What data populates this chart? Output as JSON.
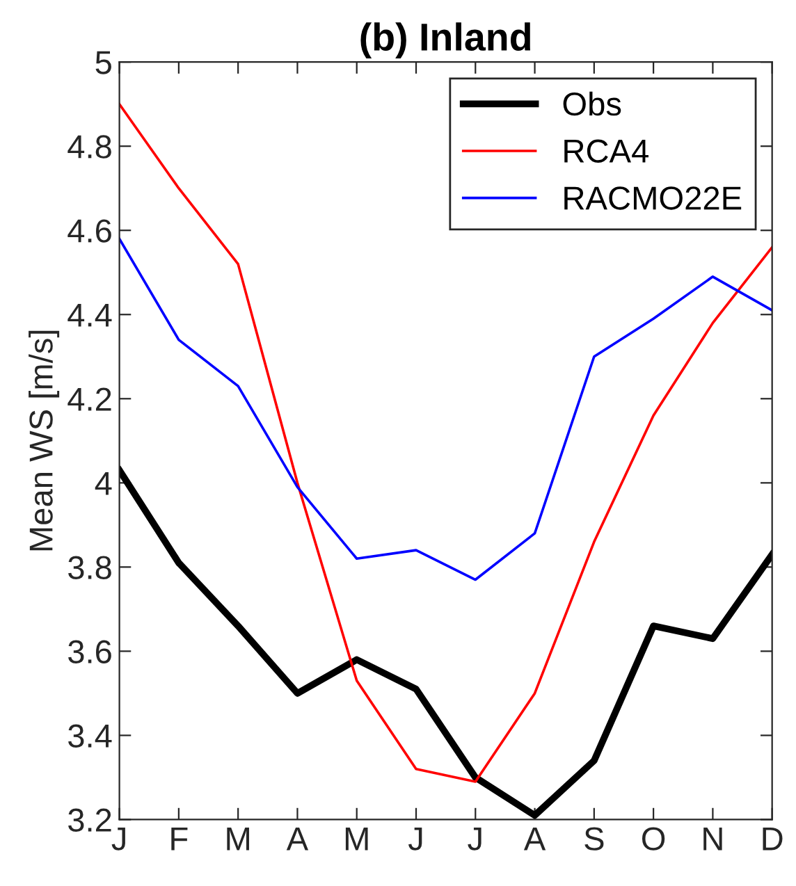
{
  "chart_data": {
    "type": "line",
    "title": "(b) Inland",
    "ylabel": "Mean WS [m/s]",
    "categories": [
      "J",
      "F",
      "M",
      "A",
      "M",
      "J",
      "J",
      "A",
      "S",
      "O",
      "N",
      "D"
    ],
    "series": [
      {
        "name": "Obs",
        "color": "#000000",
        "values": [
          4.03,
          3.81,
          3.66,
          3.5,
          3.58,
          3.51,
          3.3,
          3.21,
          3.34,
          3.66,
          3.63,
          3.83
        ]
      },
      {
        "name": "RCA4",
        "color": "#ff0000",
        "values": [
          4.9,
          4.7,
          4.52,
          4.0,
          3.53,
          3.32,
          3.29,
          3.5,
          3.86,
          4.16,
          4.38,
          4.56
        ]
      },
      {
        "name": "RACMO22E",
        "color": "#0000ff",
        "values": [
          4.58,
          4.34,
          4.23,
          3.99,
          3.82,
          3.84,
          3.77,
          3.88,
          4.3,
          4.39,
          4.49,
          4.41
        ]
      }
    ],
    "ylim": [
      3.2,
      5
    ],
    "yticks": [
      3.2,
      3.4,
      3.6,
      3.8,
      4,
      4.2,
      4.4,
      4.6,
      4.8,
      5
    ],
    "grid": false,
    "legend": "top right",
    "marker": "none",
    "line_style": "solid"
  }
}
